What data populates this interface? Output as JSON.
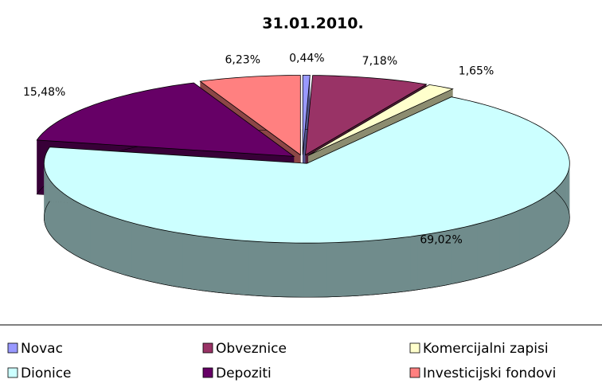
{
  "chart_data": {
    "type": "pie",
    "title": "31.01.2010.",
    "categories": [
      "Novac",
      "Obveznice",
      "Komercijalni zapisi",
      "Dionice",
      "Depoziti",
      "Investicijski fondovi"
    ],
    "values": [
      0.44,
      7.18,
      1.65,
      69.02,
      15.48,
      6.23
    ],
    "value_labels": [
      "0,44%",
      "7,18%",
      "1,65%",
      "69,02%",
      "15,48%",
      "6,23%"
    ],
    "colors": [
      "#9999ff",
      "#993366",
      "#ffffcc",
      "#ccffff",
      "#660066",
      "#ff8080"
    ],
    "legend": "bottom"
  }
}
